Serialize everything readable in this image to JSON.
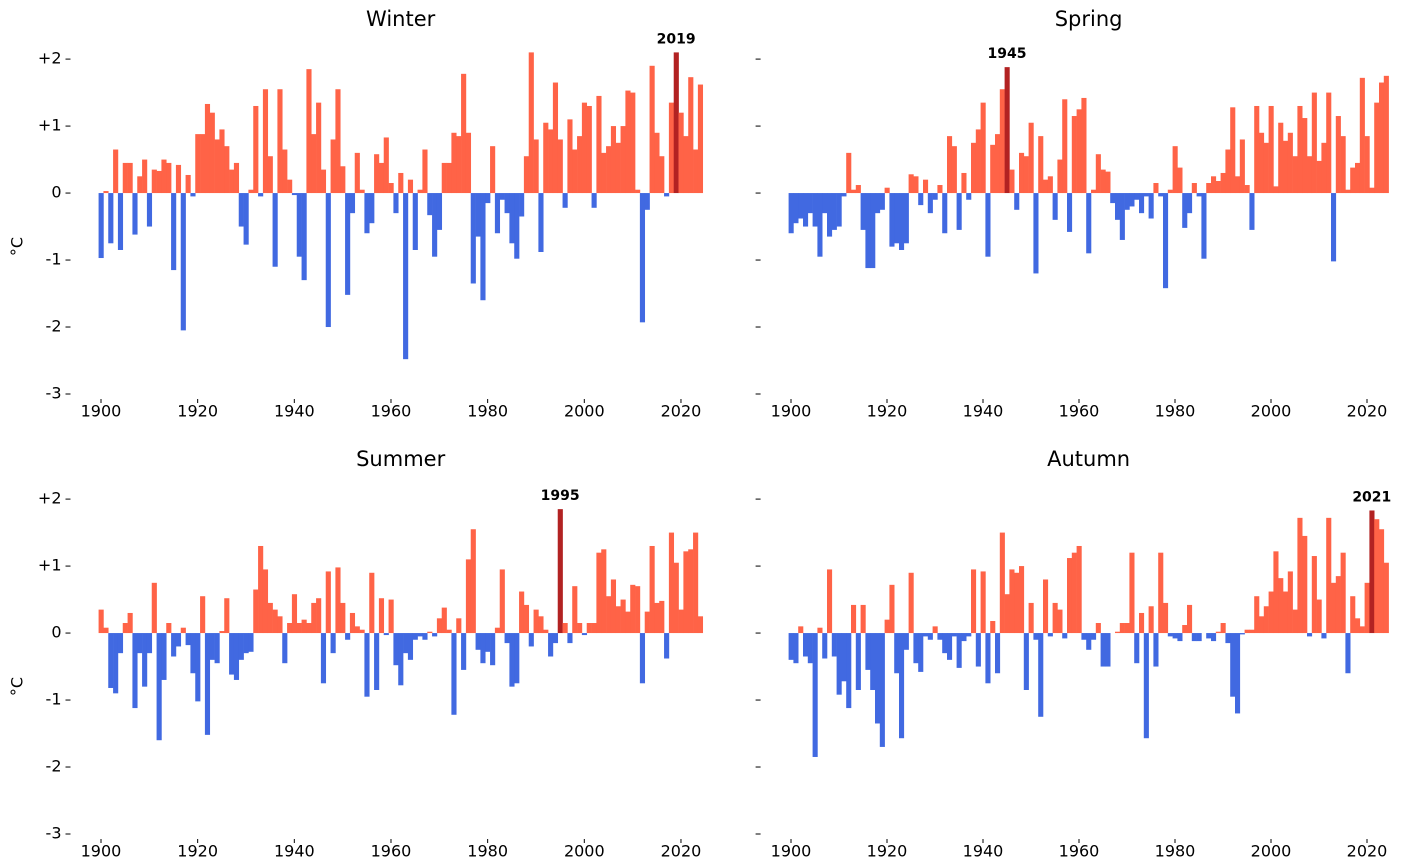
{
  "chart_data": [
    {
      "type": "bar",
      "title": "Winter",
      "ylabel": "°C",
      "ytick_labels": true,
      "positive_color": "#ff6347",
      "negative_color": "#4169e1",
      "highlight_color": "#b22222",
      "highlight_year": 2019,
      "xlim": [
        1897,
        2027
      ],
      "xticks": [
        1900,
        1920,
        1940,
        1960,
        1980,
        2000,
        2020
      ],
      "ylim": [
        -3,
        2.3
      ],
      "yticks": [
        {
          "value": 2,
          "label": "+2"
        },
        {
          "value": 1,
          "label": "+1"
        },
        0,
        -1,
        -2,
        -3
      ],
      "x": [
        1900,
        1901,
        1902,
        1903,
        1904,
        1905,
        1906,
        1907,
        1908,
        1909,
        1910,
        1911,
        1912,
        1913,
        1914,
        1915,
        1916,
        1917,
        1918,
        1919,
        1920,
        1921,
        1922,
        1923,
        1924,
        1925,
        1926,
        1927,
        1928,
        1929,
        1930,
        1931,
        1932,
        1933,
        1934,
        1935,
        1936,
        1937,
        1938,
        1939,
        1940,
        1941,
        1942,
        1943,
        1944,
        1945,
        1946,
        1947,
        1948,
        1949,
        1950,
        1951,
        1952,
        1953,
        1954,
        1955,
        1956,
        1957,
        1958,
        1959,
        1960,
        1961,
        1962,
        1963,
        1964,
        1965,
        1966,
        1967,
        1968,
        1969,
        1970,
        1971,
        1972,
        1973,
        1974,
        1975,
        1976,
        1977,
        1978,
        1979,
        1980,
        1981,
        1982,
        1983,
        1984,
        1985,
        1986,
        1987,
        1988,
        1989,
        1990,
        1991,
        1992,
        1993,
        1994,
        1995,
        1996,
        1997,
        1998,
        1999,
        2000,
        2001,
        2002,
        2003,
        2004,
        2005,
        2006,
        2007,
        2008,
        2009,
        2010,
        2011,
        2012,
        2013,
        2014,
        2015,
        2016,
        2017,
        2018,
        2019,
        2020,
        2021,
        2022,
        2023,
        2024
      ],
      "values": [
        -0.97,
        0.03,
        -0.75,
        0.65,
        -0.85,
        0.45,
        0.45,
        -0.62,
        0.25,
        0.5,
        -0.5,
        0.35,
        0.33,
        0.5,
        0.45,
        -1.15,
        0.42,
        -2.05,
        0.27,
        -0.05,
        0.88,
        0.88,
        1.33,
        1.2,
        0.8,
        0.95,
        0.7,
        0.35,
        0.45,
        -0.5,
        -0.77,
        0.05,
        1.3,
        -0.05,
        1.55,
        0.55,
        -1.1,
        1.55,
        0.65,
        0.2,
        -0.03,
        -0.95,
        -1.3,
        1.85,
        0.88,
        1.35,
        0.35,
        -2.0,
        0.8,
        1.55,
        0.4,
        -1.52,
        -0.3,
        0.6,
        0.05,
        -0.6,
        -0.45,
        0.58,
        0.45,
        0.83,
        0.15,
        -0.3,
        0.3,
        -2.48,
        0.2,
        -0.85,
        0.05,
        0.65,
        -0.33,
        -0.95,
        -0.55,
        0.45,
        0.45,
        0.9,
        0.85,
        1.78,
        0.9,
        -1.35,
        -0.65,
        -1.6,
        -0.15,
        0.7,
        -0.6,
        -0.1,
        -0.3,
        -0.75,
        -0.98,
        -0.35,
        0.55,
        2.1,
        0.8,
        -0.88,
        1.05,
        0.95,
        1.65,
        0.8,
        -0.22,
        1.1,
        0.65,
        0.85,
        1.35,
        1.3,
        -0.22,
        1.45,
        0.6,
        0.7,
        1.0,
        0.75,
        1.0,
        1.53,
        1.5,
        0.05,
        -1.93,
        -0.25,
        1.9,
        0.9,
        0.55,
        -0.05,
        1.35,
        2.1,
        1.2,
        0.85,
        1.73,
        0.65,
        1.62
      ]
    },
    {
      "type": "bar",
      "title": "Spring",
      "ytick_labels": false,
      "positive_color": "#ff6347",
      "negative_color": "#4169e1",
      "highlight_color": "#b22222",
      "highlight_year": 1945,
      "xlim": [
        1897,
        2027
      ],
      "xticks": [
        1900,
        1920,
        1940,
        1960,
        1980,
        2000,
        2020
      ],
      "ylim": [
        -3,
        2.3
      ],
      "yticks": [
        2,
        1,
        0,
        -1,
        -2,
        -3
      ],
      "x": [
        1900,
        1901,
        1902,
        1903,
        1904,
        1905,
        1906,
        1907,
        1908,
        1909,
        1910,
        1911,
        1912,
        1913,
        1914,
        1915,
        1916,
        1917,
        1918,
        1919,
        1920,
        1921,
        1922,
        1923,
        1924,
        1925,
        1926,
        1927,
        1928,
        1929,
        1930,
        1931,
        1932,
        1933,
        1934,
        1935,
        1936,
        1937,
        1938,
        1939,
        1940,
        1941,
        1942,
        1943,
        1944,
        1945,
        1946,
        1947,
        1948,
        1949,
        1950,
        1951,
        1952,
        1953,
        1954,
        1955,
        1956,
        1957,
        1958,
        1959,
        1960,
        1961,
        1962,
        1963,
        1964,
        1965,
        1966,
        1967,
        1968,
        1969,
        1970,
        1971,
        1972,
        1973,
        1974,
        1975,
        1976,
        1977,
        1978,
        1979,
        1980,
        1981,
        1982,
        1983,
        1984,
        1985,
        1986,
        1987,
        1988,
        1989,
        1990,
        1991,
        1992,
        1993,
        1994,
        1995,
        1996,
        1997,
        1998,
        1999,
        2000,
        2001,
        2002,
        2003,
        2004,
        2005,
        2006,
        2007,
        2008,
        2009,
        2010,
        2011,
        2012,
        2013,
        2014,
        2015,
        2016,
        2017,
        2018,
        2019,
        2020,
        2021,
        2022,
        2023,
        2024
      ],
      "values": [
        -0.6,
        -0.45,
        -0.38,
        -0.5,
        -0.3,
        -0.5,
        -0.95,
        -0.3,
        -0.65,
        -0.55,
        -0.5,
        -0.05,
        0.6,
        0.05,
        0.12,
        -0.55,
        -1.12,
        -1.12,
        -0.3,
        -0.25,
        0.08,
        -0.8,
        -0.75,
        -0.85,
        -0.75,
        0.28,
        0.25,
        -0.18,
        0.2,
        -0.3,
        -0.1,
        0.12,
        -0.6,
        0.85,
        0.7,
        -0.55,
        0.3,
        -0.1,
        0.75,
        0.95,
        1.35,
        -0.95,
        0.72,
        0.88,
        1.55,
        1.88,
        0.35,
        -0.25,
        0.6,
        0.55,
        1.05,
        -1.2,
        0.85,
        0.2,
        0.25,
        -0.4,
        0.5,
        1.4,
        -0.58,
        1.15,
        1.25,
        1.42,
        -0.9,
        0.05,
        0.58,
        0.35,
        0.32,
        -0.15,
        -0.4,
        -0.7,
        -0.25,
        -0.2,
        -0.1,
        -0.3,
        -0.05,
        -0.38,
        0.15,
        -0.05,
        -1.42,
        0.05,
        0.7,
        0.38,
        -0.52,
        -0.3,
        0.15,
        -0.05,
        -0.98,
        0.15,
        0.25,
        0.18,
        0.3,
        0.65,
        1.28,
        0.25,
        0.8,
        0.12,
        -0.55,
        1.3,
        0.9,
        0.75,
        1.3,
        0.1,
        1.05,
        0.78,
        0.9,
        0.55,
        1.3,
        1.12,
        0.55,
        1.5,
        0.48,
        0.75,
        1.5,
        -1.02,
        1.15,
        0.85,
        0.05,
        0.38,
        0.45,
        1.72,
        0.85,
        0.08,
        1.35,
        1.65,
        1.75
      ]
    },
    {
      "type": "bar",
      "title": "Summer",
      "ylabel": "°C",
      "ytick_labels": true,
      "positive_color": "#ff6347",
      "negative_color": "#4169e1",
      "highlight_color": "#b22222",
      "highlight_year": 1995,
      "xlim": [
        1897,
        2027
      ],
      "xticks": [
        1900,
        1920,
        1940,
        1960,
        1980,
        2000,
        2020
      ],
      "ylim": [
        -3,
        2.3
      ],
      "yticks": [
        {
          "value": 2,
          "label": "+2"
        },
        {
          "value": 1,
          "label": "+1"
        },
        0,
        -1,
        -2,
        -3
      ],
      "x": [
        1900,
        1901,
        1902,
        1903,
        1904,
        1905,
        1906,
        1907,
        1908,
        1909,
        1910,
        1911,
        1912,
        1913,
        1914,
        1915,
        1916,
        1917,
        1918,
        1919,
        1920,
        1921,
        1922,
        1923,
        1924,
        1925,
        1926,
        1927,
        1928,
        1929,
        1930,
        1931,
        1932,
        1933,
        1934,
        1935,
        1936,
        1937,
        1938,
        1939,
        1940,
        1941,
        1942,
        1943,
        1944,
        1945,
        1946,
        1947,
        1948,
        1949,
        1950,
        1951,
        1952,
        1953,
        1954,
        1955,
        1956,
        1957,
        1958,
        1959,
        1960,
        1961,
        1962,
        1963,
        1964,
        1965,
        1966,
        1967,
        1968,
        1969,
        1970,
        1971,
        1972,
        1973,
        1974,
        1975,
        1976,
        1977,
        1978,
        1979,
        1980,
        1981,
        1982,
        1983,
        1984,
        1985,
        1986,
        1987,
        1988,
        1989,
        1990,
        1991,
        1992,
        1993,
        1994,
        1995,
        1996,
        1997,
        1998,
        1999,
        2000,
        2001,
        2002,
        2003,
        2004,
        2005,
        2006,
        2007,
        2008,
        2009,
        2010,
        2011,
        2012,
        2013,
        2014,
        2015,
        2016,
        2017,
        2018,
        2019,
        2020,
        2021,
        2022,
        2023,
        2024
      ],
      "values": [
        0.35,
        0.08,
        -0.82,
        -0.9,
        -0.3,
        0.15,
        0.3,
        -1.12,
        -0.3,
        -0.8,
        -0.3,
        0.75,
        -1.6,
        -0.7,
        0.15,
        -0.35,
        -0.2,
        0.08,
        -0.18,
        -0.6,
        -1.02,
        0.55,
        -1.52,
        -0.4,
        -0.45,
        0.03,
        0.52,
        -0.62,
        -0.7,
        -0.4,
        -0.3,
        -0.28,
        0.65,
        1.3,
        0.95,
        0.45,
        0.35,
        0.25,
        -0.45,
        0.15,
        0.58,
        0.15,
        0.2,
        0.15,
        0.45,
        0.52,
        -0.75,
        0.92,
        -0.3,
        0.98,
        0.45,
        -0.1,
        0.3,
        0.1,
        0.05,
        -0.95,
        0.9,
        -0.85,
        0.52,
        -0.03,
        0.5,
        -0.48,
        -0.78,
        -0.3,
        -0.4,
        -0.1,
        -0.05,
        -0.1,
        0.02,
        -0.05,
        0.22,
        0.38,
        0.05,
        -1.22,
        0.22,
        -0.55,
        1.1,
        1.55,
        -0.25,
        -0.45,
        -0.28,
        -0.48,
        0.08,
        0.95,
        -0.15,
        -0.8,
        -0.75,
        0.62,
        0.42,
        -0.2,
        0.35,
        0.25,
        0.05,
        -0.35,
        -0.15,
        1.85,
        0.15,
        -0.15,
        0.7,
        0.15,
        -0.03,
        0.15,
        0.15,
        1.2,
        1.25,
        0.55,
        0.8,
        0.4,
        0.5,
        0.32,
        0.72,
        0.7,
        -0.75,
        0.32,
        1.3,
        0.45,
        0.48,
        -0.38,
        1.5,
        1.05,
        0.35,
        1.22,
        1.25,
        1.5,
        0.25
      ]
    },
    {
      "type": "bar",
      "title": "Autumn",
      "ytick_labels": false,
      "positive_color": "#ff6347",
      "negative_color": "#4169e1",
      "highlight_color": "#b22222",
      "highlight_year": 2021,
      "xlim": [
        1897,
        2027
      ],
      "xticks": [
        1900,
        1920,
        1940,
        1960,
        1980,
        2000,
        2020
      ],
      "ylim": [
        -3,
        2.3
      ],
      "yticks": [
        2,
        1,
        0,
        -1,
        -2,
        -3
      ],
      "x": [
        1900,
        1901,
        1902,
        1903,
        1904,
        1905,
        1906,
        1907,
        1908,
        1909,
        1910,
        1911,
        1912,
        1913,
        1914,
        1915,
        1916,
        1917,
        1918,
        1919,
        1920,
        1921,
        1922,
        1923,
        1924,
        1925,
        1926,
        1927,
        1928,
        1929,
        1930,
        1931,
        1932,
        1933,
        1934,
        1935,
        1936,
        1937,
        1938,
        1939,
        1940,
        1941,
        1942,
        1943,
        1944,
        1945,
        1946,
        1947,
        1948,
        1949,
        1950,
        1951,
        1952,
        1953,
        1954,
        1955,
        1956,
        1957,
        1958,
        1959,
        1960,
        1961,
        1962,
        1963,
        1964,
        1965,
        1966,
        1967,
        1968,
        1969,
        1970,
        1971,
        1972,
        1973,
        1974,
        1975,
        1976,
        1977,
        1978,
        1979,
        1980,
        1981,
        1982,
        1983,
        1984,
        1985,
        1986,
        1987,
        1988,
        1989,
        1990,
        1991,
        1992,
        1993,
        1994,
        1995,
        1996,
        1997,
        1998,
        1999,
        2000,
        2001,
        2002,
        2003,
        2004,
        2005,
        2006,
        2007,
        2008,
        2009,
        2010,
        2011,
        2012,
        2013,
        2014,
        2015,
        2016,
        2017,
        2018,
        2019,
        2020,
        2021,
        2022,
        2023,
        2024
      ],
      "values": [
        -0.4,
        -0.45,
        0.1,
        -0.35,
        -0.45,
        -1.85,
        0.08,
        -0.38,
        0.95,
        -0.35,
        -0.92,
        -0.72,
        -1.12,
        0.42,
        -0.85,
        0.42,
        -0.55,
        -0.85,
        -1.35,
        -1.7,
        0.2,
        0.72,
        -0.6,
        -1.57,
        -0.25,
        0.9,
        -0.45,
        -0.58,
        -0.05,
        -0.1,
        0.1,
        -0.1,
        -0.3,
        -0.4,
        -0.05,
        -0.52,
        -0.12,
        -0.05,
        0.95,
        -0.5,
        0.92,
        -0.75,
        0.18,
        -0.6,
        1.5,
        0.58,
        0.95,
        0.9,
        1.0,
        -0.85,
        0.45,
        -0.1,
        -1.25,
        0.8,
        -0.05,
        0.45,
        0.35,
        -0.08,
        1.12,
        1.2,
        1.3,
        -0.1,
        -0.25,
        -0.1,
        0.15,
        -0.5,
        -0.5,
        0.0,
        0.02,
        0.15,
        0.15,
        1.2,
        -0.45,
        0.3,
        -1.57,
        0.4,
        -0.5,
        1.2,
        0.45,
        -0.05,
        -0.08,
        -0.12,
        0.12,
        0.42,
        -0.12,
        -0.12,
        0.0,
        -0.08,
        -0.12,
        0.02,
        0.15,
        -0.15,
        -0.95,
        -1.2,
        -0.02,
        0.05,
        0.05,
        0.55,
        0.25,
        0.4,
        0.62,
        1.22,
        0.82,
        0.62,
        0.92,
        0.35,
        1.72,
        1.45,
        -0.05,
        1.15,
        0.5,
        -0.08,
        1.72,
        0.75,
        0.85,
        1.2,
        -0.6,
        0.55,
        0.22,
        0.1,
        0.75,
        1.83,
        1.7,
        1.55,
        1.05
      ]
    }
  ]
}
